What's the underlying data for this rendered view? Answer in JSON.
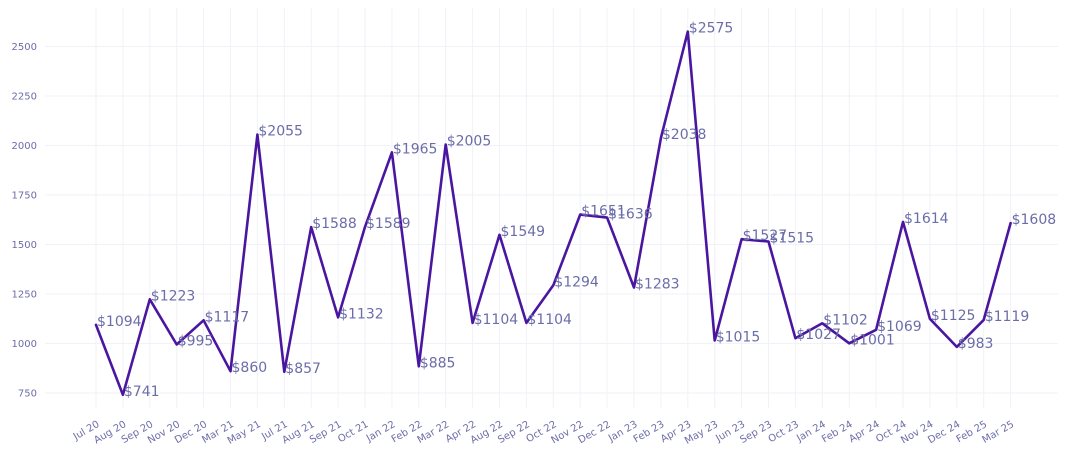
{
  "chart_data": {
    "type": "line",
    "title": "",
    "xlabel": "",
    "ylabel": "",
    "ylim": [
      650,
      2650
    ],
    "yticks": [
      "750",
      "1000",
      "1250",
      "1500",
      "1750",
      "2000",
      "2250",
      "2500"
    ],
    "grid": true,
    "legend": "none",
    "colors": {
      "line": "#4a16a0",
      "text": "#6b6da8",
      "grid": "#f0f2f7"
    },
    "categories": [
      "Jul 20",
      "Aug 20",
      "Sep 20",
      "Nov 20",
      "Dec 20",
      "Mar 21",
      "May 21",
      "Jul 21",
      "Aug 21",
      "Sep 21",
      "Oct 21",
      "Jan 22",
      "Feb 22",
      "Mar 22",
      "Apr 22",
      "Aug 22",
      "Sep 22",
      "Oct 22",
      "Nov 22",
      "Dec 22",
      "Jan 23",
      "Feb 23",
      "Apr 23",
      "May 23",
      "Jun 23",
      "Sep 23",
      "Oct 23",
      "Jan 24",
      "Feb 24",
      "Apr 24",
      "Oct 24",
      "Nov 24",
      "Dec 24",
      "Feb 25",
      "Mar 25"
    ],
    "values": [
      1094,
      741,
      1223,
      995,
      1117,
      860,
      2055,
      857,
      1588,
      1132,
      1589,
      1965,
      885,
      2005,
      1104,
      1549,
      1104,
      1294,
      1651,
      1636,
      1283,
      2038,
      2575,
      1015,
      1527,
      1515,
      1027,
      1102,
      1001,
      1069,
      1614,
      1125,
      983,
      1119,
      1608
    ],
    "labels": [
      "$1094",
      "$741",
      "$1223",
      "$995",
      "$1117",
      "$860",
      "$2055",
      "$857",
      "$1588",
      "$1132",
      "$1589",
      "$1965",
      "$885",
      "$2005",
      "$1104",
      "$1549",
      "$1104",
      "$1294",
      "$1651",
      "$1636",
      "$1283",
      "$2038",
      "$2575",
      "$1015",
      "$1527",
      "$1515",
      "$1027",
      "$1102",
      "$1001",
      "$1069",
      "$1614",
      "$1125",
      "$983",
      "$1119",
      "$1608"
    ]
  }
}
